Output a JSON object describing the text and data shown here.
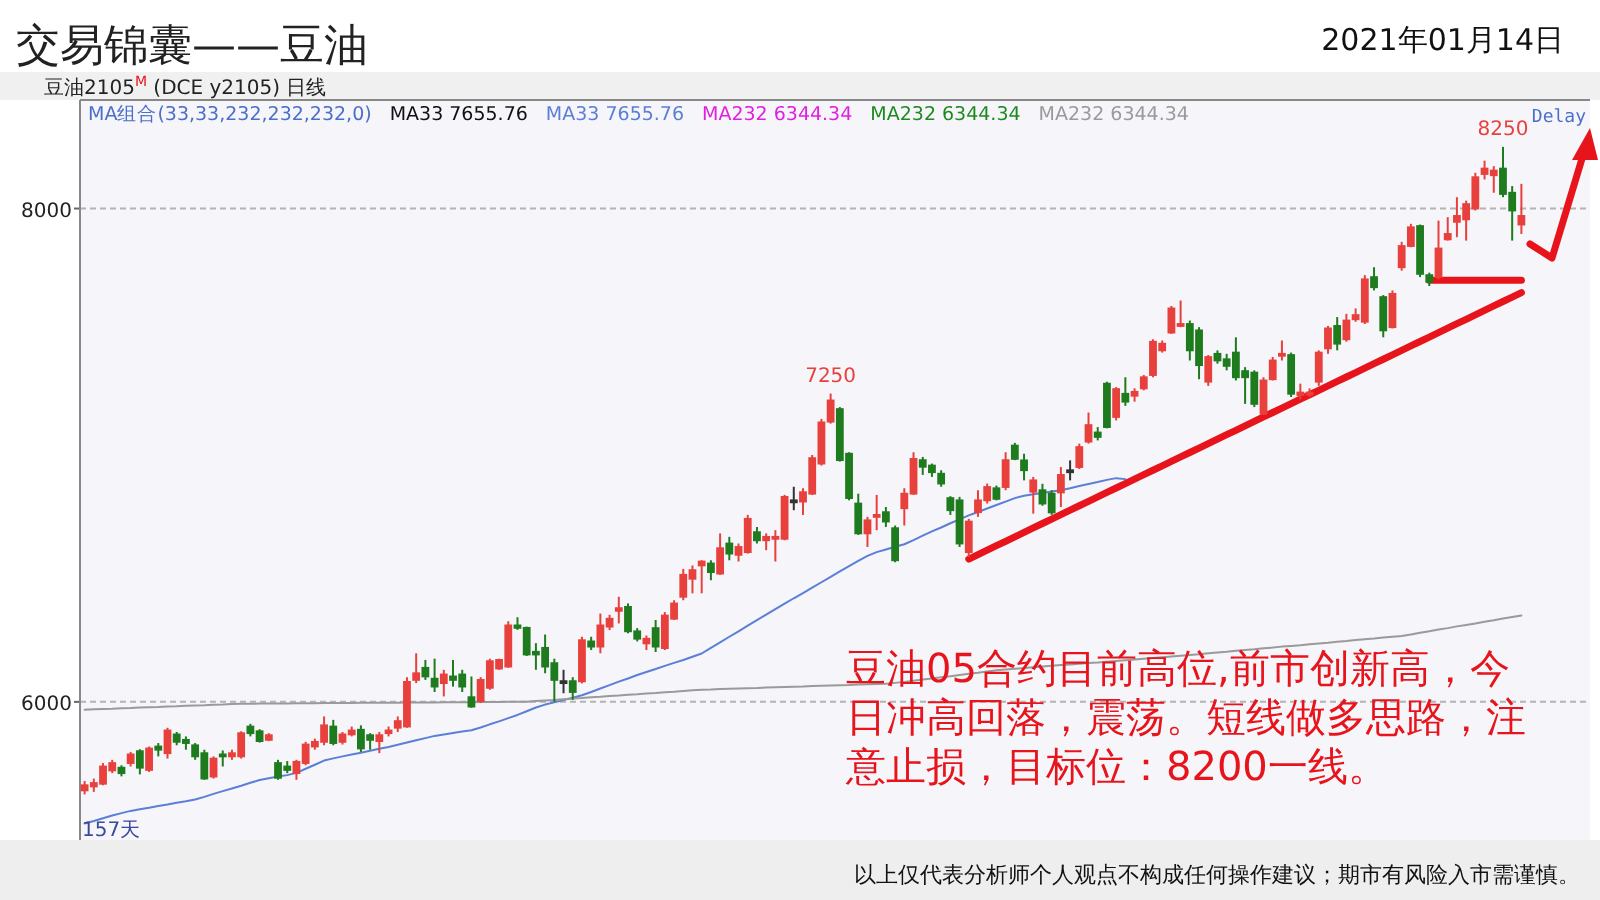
{
  "chart_data": {
    "type": "candlestick",
    "title": "交易锦囊——豆油",
    "colors": [
      "#e8403c",
      "#e8403c",
      "#e8403c",
      "#e8403c",
      "#1e7b1e",
      "#e8403c",
      "#1e7b1e",
      "#e8403c",
      "#1e7b1e",
      "#e8403c",
      "#1e7b1e",
      "#1e7b1e",
      "#1e7b1e",
      "#1e7b1e",
      "#e8403c",
      "#1e7b1e",
      "#e8403c",
      "#e8403c",
      "#1e7b1e",
      "#1e7b1e",
      "#e8403c",
      "#1e7b1e",
      "#1e7b1e",
      "#e8403c",
      "#e8403c",
      "#e8403c",
      "#e8403c",
      "#1e7b1e",
      "#e8403c",
      "#e8403c",
      "#1e7b1e",
      "#1e7b1e",
      "#e8403c",
      "#e8403c",
      "#e8403c",
      "#e8403c",
      "#e8403c",
      "#1e7b1e",
      "#1e7b1e",
      "#e8403c",
      "#1e7b1e",
      "#1e7b1e",
      "#1e7b1e",
      "#e8403c",
      "#e8403c",
      "#e8403c",
      "#e8403c",
      "#1e7b1e",
      "#1e7b1e",
      "#1e7b1e",
      "#1e7b1e",
      "#1e7b1e",
      "#333333",
      "#1e7b1e",
      "#e8403c",
      "#1e7b1e",
      "#e8403c",
      "#e8403c",
      "#e8403c",
      "#1e7b1e",
      "#1e7b1e",
      "#e8403c",
      "#1e7b1e",
      "#e8403c",
      "#e8403c",
      "#e8403c",
      "#e8403c",
      "#e8403c",
      "#1e7b1e",
      "#e8403c",
      "#1e7b1e",
      "#e8403c",
      "#e8403c",
      "#1e7b1e",
      "#e8403c",
      "#e8403c",
      "#e8403c",
      "#333333",
      "#e8403c",
      "#e8403c",
      "#e8403c",
      "#e8403c",
      "#1e7b1e",
      "#1e7b1e",
      "#1e7b1e",
      "#e8403c",
      "#e8403c",
      "#1e7b1e",
      "#1e7b1e",
      "#e8403c",
      "#e8403c",
      "#1e7b1e",
      "#1e7b1e",
      "#1e7b1e",
      "#1e7b1e",
      "#1e7b1e",
      "#e8403c",
      "#e8403c",
      "#e8403c",
      "#1e7b1e",
      "#e8403c",
      "#1e7b1e",
      "#1e7b1e",
      "#e8403c",
      "#1e7b1e",
      "#1e7b1e",
      "#e8403c",
      "#333333",
      "#e8403c",
      "#e8403c",
      "#1e7b1e",
      "#1e7b1e",
      "#e8403c",
      "#1e7b1e",
      "#e8403c",
      "#e8403c",
      "#e8403c",
      "#e8403c",
      "#e8403c",
      "#e8403c",
      "#1e7b1e",
      "#1e7b1e",
      "#e8403c",
      "#1e7b1e",
      "#1e7b1e",
      "#1e7b1e",
      "#1e7b1e",
      "#1e7b1e",
      "#e8403c",
      "#e8403c",
      "#e8403c",
      "#1e7b1e",
      "#e8403c",
      "#e8403c",
      "#e8403c",
      "#e8403c",
      "#1e7b1e",
      "#e8403c",
      "#e8403c",
      "#e8403c",
      "#1e7b1e",
      "#1e7b1e",
      "#e8403c",
      "#e8403c",
      "#e8403c",
      "#1e7b1e",
      "#1e7b1e",
      "#e8403c",
      "#e8403c",
      "#e8403c",
      "#e8403c",
      "#e8403c",
      "#e8403c",
      "#e8403c",
      "#1e7b1e",
      "#1e7b1e",
      "#e8403c"
    ],
    "categories": [
      null,
      null,
      null,
      null,
      null,
      null,
      null,
      null,
      null,
      null,
      null,
      null,
      null,
      null,
      null,
      null,
      null,
      null,
      null,
      null,
      null,
      null,
      null,
      null,
      null,
      null,
      null,
      null,
      null,
      null,
      null,
      null,
      null,
      null,
      null,
      null,
      null,
      null,
      null,
      null,
      null,
      null,
      null,
      null,
      null,
      null,
      null,
      null,
      null,
      null,
      null,
      null,
      null,
      null,
      null,
      null,
      null,
      null,
      null,
      null,
      null,
      null,
      null,
      null,
      null,
      null,
      null,
      null,
      null,
      null,
      null,
      null,
      null,
      null,
      null,
      null,
      null,
      null,
      null,
      null,
      null,
      null,
      null,
      null,
      null,
      null,
      null,
      null,
      null,
      null,
      null,
      null,
      null,
      null,
      null,
      null,
      null,
      null,
      null,
      null,
      null,
      null,
      null,
      null,
      null,
      null,
      null,
      null,
      null,
      null,
      null,
      null,
      null,
      null,
      null,
      null,
      null,
      null,
      null,
      null,
      null,
      null,
      null,
      null,
      null,
      null,
      null,
      null,
      null,
      null,
      null,
      null,
      null,
      null,
      null,
      null,
      null,
      null,
      null,
      null,
      null,
      null,
      null,
      null,
      null,
      null,
      null,
      null,
      null,
      null,
      null,
      null,
      null,
      null,
      null,
      null,
      null
    ],
    "value_labels": [
      null,
      null,
      null,
      null,
      null,
      null,
      null,
      null,
      null,
      null,
      null,
      null,
      null,
      null,
      null,
      null,
      null,
      null,
      null,
      null,
      null,
      null,
      null,
      null,
      null,
      null,
      null,
      null,
      null,
      null,
      null,
      null,
      null,
      null,
      null,
      null,
      null,
      null,
      null,
      null,
      null,
      null,
      null,
      null,
      null,
      null,
      null,
      null,
      null,
      null,
      null,
      null,
      null,
      null,
      null,
      null,
      null,
      null,
      null,
      null,
      null,
      null,
      null,
      null,
      null,
      null,
      null,
      null,
      null,
      null,
      null,
      null,
      null,
      null,
      null,
      null,
      null,
      null,
      null,
      null,
      null,
      "7250",
      null,
      null,
      null,
      null,
      null,
      null,
      null,
      null,
      null,
      null,
      null,
      null,
      null,
      null,
      null,
      null,
      null,
      null,
      null,
      null,
      null,
      null,
      null,
      null,
      null,
      null,
      null,
      null,
      null,
      null,
      null,
      null,
      null,
      null,
      null,
      null,
      null,
      null,
      null,
      null,
      null,
      null,
      null,
      null,
      null,
      null,
      null,
      null,
      null,
      null,
      null,
      null,
      null,
      null,
      null,
      null,
      null,
      null,
      null,
      null,
      null,
      null,
      null,
      null,
      null,
      null,
      null,
      null,
      null,
      null,
      null,
      null,
      "8250",
      null,
      null
    ],
    "ohlc": [
      [
        5641,
        5679,
        5625,
        5662
      ],
      [
        5657,
        5689,
        5635,
        5671
      ],
      [
        5668,
        5752,
        5662,
        5738
      ],
      [
        5722,
        5765,
        5711,
        5752
      ],
      [
        5733,
        5743,
        5698,
        5711
      ],
      [
        5752,
        5797,
        5738,
        5787
      ],
      [
        5800,
        5808,
        5706,
        5733
      ],
      [
        5724,
        5819,
        5716,
        5811
      ],
      [
        5819,
        5833,
        5779,
        5806
      ],
      [
        5792,
        5895,
        5770,
        5884
      ],
      [
        5868,
        5878,
        5824,
        5838
      ],
      [
        5846,
        5860,
        5806,
        5833
      ],
      [
        5824,
        5833,
        5765,
        5779
      ],
      [
        5792,
        5806,
        5684,
        5689
      ],
      [
        5697,
        5779,
        5689,
        5770
      ],
      [
        5787,
        5803,
        5738,
        5779
      ],
      [
        5779,
        5806,
        5765,
        5792
      ],
      [
        5779,
        5881,
        5770,
        5873
      ],
      [
        5900,
        5911,
        5860,
        5873
      ],
      [
        5881,
        5889,
        5835,
        5841
      ],
      [
        5846,
        5873,
        5841,
        5865
      ],
      [
        5752,
        5765,
        5684,
        5692
      ],
      [
        5738,
        5760,
        5711,
        5724
      ],
      [
        5711,
        5765,
        5684,
        5757
      ],
      [
        5752,
        5838,
        5743,
        5827
      ],
      [
        5819,
        5851,
        5806,
        5838
      ],
      [
        5838,
        5941,
        5824,
        5905
      ],
      [
        5900,
        5927,
        5824,
        5833
      ],
      [
        5838,
        5878,
        5827,
        5868
      ],
      [
        5868,
        5900,
        5860,
        5884
      ],
      [
        5887,
        5905,
        5797,
        5811
      ],
      [
        5865,
        5873,
        5806,
        5846
      ],
      [
        5841,
        5878,
        5792,
        5865
      ],
      [
        5873,
        5900,
        5860,
        5884
      ],
      [
        5895,
        5941,
        5878,
        5922
      ],
      [
        5900,
        6100,
        5895,
        6081
      ],
      [
        6089,
        6197,
        6076,
        6116
      ],
      [
        6138,
        6170,
        6089,
        6103
      ],
      [
        6094,
        6175,
        6040,
        6062
      ],
      [
        6076,
        6130,
        6022,
        6111
      ],
      [
        6103,
        6170,
        6062,
        6089
      ],
      [
        6111,
        6130,
        6040,
        6062
      ],
      [
        6019,
        6103,
        5976,
        5981
      ],
      [
        6003,
        6100,
        5995,
        6089
      ],
      [
        6057,
        6175,
        6049,
        6165
      ],
      [
        6135,
        6175,
        6130,
        6170
      ],
      [
        6143,
        6327,
        6138,
        6310
      ],
      [
        6310,
        6343,
        6292,
        6300
      ],
      [
        6300,
        6305,
        6186,
        6192
      ],
      [
        6203,
        6238,
        6130,
        6192
      ],
      [
        6219,
        6273,
        6116,
        6143
      ],
      [
        6157,
        6175,
        6000,
        6089
      ],
      [
        6084,
        6130,
        6035,
        6084
      ],
      [
        6084,
        6100,
        6008,
        6040
      ],
      [
        6083,
        6264,
        6075,
        6250
      ],
      [
        6245,
        6264,
        6210,
        6224
      ],
      [
        6224,
        6358,
        6197,
        6310
      ],
      [
        6305,
        6353,
        6291,
        6337
      ],
      [
        6369,
        6426,
        6318,
        6380
      ],
      [
        6385,
        6399,
        6278,
        6286
      ],
      [
        6286,
        6299,
        6245,
        6256
      ],
      [
        6237,
        6269,
        6210,
        6256
      ],
      [
        6299,
        6332,
        6202,
        6224
      ],
      [
        6218,
        6364,
        6210,
        6350
      ],
      [
        6337,
        6412,
        6332,
        6399
      ],
      [
        6426,
        6539,
        6412,
        6515
      ],
      [
        6499,
        6553,
        6440,
        6534
      ],
      [
        6553,
        6574,
        6440,
        6569
      ],
      [
        6561,
        6574,
        6493,
        6526
      ],
      [
        6520,
        6683,
        6515,
        6623
      ],
      [
        6642,
        6669,
        6574,
        6601
      ],
      [
        6596,
        6642,
        6569,
        6628
      ],
      [
        6607,
        6758,
        6601,
        6742
      ],
      [
        6688,
        6709,
        6642,
        6655
      ],
      [
        6655,
        6683,
        6615,
        6669
      ],
      [
        6661,
        6696,
        6569,
        6669
      ],
      [
        6661,
        6839,
        6655,
        6831
      ],
      [
        6817,
        6872,
        6777,
        6817
      ],
      [
        6812,
        6866,
        6758,
        6850
      ],
      [
        6844,
        7001,
        6839,
        6988
      ],
      [
        6966,
        7147,
        6958,
        7133
      ],
      [
        7136,
        7250,
        7128,
        7222
      ],
      [
        7187,
        7195,
        6974,
        6980
      ],
      [
        7006,
        7012,
        6817,
        6826
      ],
      [
        6804,
        6844,
        6677,
        6683
      ],
      [
        6683,
        6750,
        6628,
        6736
      ],
      [
        6750,
        6839,
        6696,
        6758
      ],
      [
        6769,
        6790,
        6709,
        6731
      ],
      [
        6704,
        6715,
        6566,
        6574
      ],
      [
        6785,
        6866,
        6715,
        6844
      ],
      [
        6844,
        7012,
        6839,
        6985
      ],
      [
        6980,
        6993,
        6920,
        6953
      ],
      [
        6958,
        6966,
        6912,
        6931
      ],
      [
        6925,
        6939,
        6872,
        6885
      ],
      [
        6826,
        6834,
        6758,
        6777
      ],
      [
        6817,
        6831,
        6628,
        6642
      ],
      [
        6607,
        6742,
        6588,
        6731
      ],
      [
        6769,
        6858,
        6750,
        6817
      ],
      [
        6817,
        6885,
        6804,
        6871
      ],
      [
        6866,
        6877,
        6817,
        6823
      ],
      [
        6871,
        7012,
        6858,
        6980
      ],
      [
        7039,
        7050,
        6980,
        6985
      ],
      [
        6979,
        7006,
        6898,
        6939
      ],
      [
        6852,
        6912,
        6763,
        6898
      ],
      [
        6858,
        6884,
        6795,
        6804
      ],
      [
        6844,
        6858,
        6758,
        6768
      ],
      [
        6849,
        6952,
        6790,
        6920
      ],
      [
        6939,
        6979,
        6898,
        6939
      ],
      [
        6952,
        7047,
        6944,
        7033
      ],
      [
        7055,
        7173,
        7047,
        7122
      ],
      [
        7092,
        7114,
        7060,
        7074
      ],
      [
        7290,
        7298,
        7109,
        7114
      ],
      [
        7155,
        7276,
        7141,
        7268
      ],
      [
        7249,
        7316,
        7200,
        7217
      ],
      [
        7241,
        7271,
        7217,
        7257
      ],
      [
        7271,
        7325,
        7263,
        7316
      ],
      [
        7325,
        7470,
        7316,
        7460
      ],
      [
        7425,
        7465,
        7416,
        7452
      ],
      [
        7497,
        7605,
        7492,
        7595
      ],
      [
        7524,
        7627,
        7519,
        7532
      ],
      [
        7532,
        7546,
        7384,
        7425
      ],
      [
        7506,
        7519,
        7308,
        7365
      ],
      [
        7298,
        7406,
        7281,
        7398
      ],
      [
        7411,
        7425,
        7371,
        7384
      ],
      [
        7389,
        7411,
        7344,
        7362
      ],
      [
        7416,
        7478,
        7303,
        7316
      ],
      [
        7341,
        7357,
        7208,
        7316
      ],
      [
        7335,
        7344,
        7195,
        7208
      ],
      [
        7168,
        7316,
        7163,
        7303
      ],
      [
        7308,
        7398,
        7303,
        7384
      ],
      [
        7406,
        7465,
        7384,
        7411
      ],
      [
        7406,
        7416,
        7236,
        7249
      ],
      [
        7244,
        7290,
        7227,
        7254
      ],
      [
        7249,
        7271,
        7236,
        7254
      ],
      [
        7298,
        7425,
        7281,
        7416
      ],
      [
        7433,
        7524,
        7411,
        7514
      ],
      [
        7524,
        7560,
        7425,
        7452
      ],
      [
        7470,
        7573,
        7460,
        7546
      ],
      [
        7551,
        7595,
        7541,
        7568
      ],
      [
        7541,
        7730,
        7532,
        7713
      ],
      [
        7722,
        7762,
        7668,
        7681
      ],
      [
        7641,
        7649,
        7478,
        7506
      ],
      [
        7519,
        7668,
        7514,
        7654
      ],
      [
        7762,
        7865,
        7748,
        7848
      ],
      [
        7848,
        7938,
        7843,
        7924
      ],
      [
        7929,
        7935,
        7722,
        7735
      ],
      [
        7730,
        7740,
        7686,
        7703
      ],
      [
        7722,
        7951,
        7713,
        7838
      ],
      [
        7875,
        7965,
        7870,
        7897
      ],
      [
        7946,
        8046,
        7884,
        7970
      ],
      [
        7956,
        8032,
        7870,
        8018
      ],
      [
        8000,
        8145,
        7992,
        8127
      ],
      [
        8140,
        8194,
        8118,
        8162
      ],
      [
        8135,
        8172,
        8064,
        8154
      ],
      [
        8162,
        8250,
        8046,
        8059
      ],
      [
        8064,
        8091,
        7870,
        7992
      ],
      [
        7935,
        8100,
        7897,
        7970
      ]
    ],
    "series": [
      {
        "type": "line",
        "name": "MA33 7655.76",
        "color": "#5b7fd6",
        "values": [
          5507,
          5517,
          5528,
          5539,
          5549,
          5558,
          5565,
          5571,
          5578,
          5584,
          5591,
          5597,
          5604,
          5615,
          5627,
          5638,
          5649,
          5660,
          5672,
          5683,
          5690,
          5697,
          5703,
          5712,
          5729,
          5745,
          5762,
          5771,
          5779,
          5787,
          5794,
          5802,
          5810,
          5817,
          5826,
          5835,
          5844,
          5853,
          5862,
          5868,
          5874,
          5880,
          5885,
          5896,
          5909,
          5921,
          5934,
          5947,
          5962,
          5977,
          5989,
          5998,
          6007,
          6017,
          6027,
          6040,
          6054,
          6068,
          6082,
          6095,
          6109,
          6121,
          6133,
          6146,
          6158,
          6170,
          6183,
          6196,
          6219,
          6241,
          6264,
          6286,
          6309,
          6331,
          6354,
          6376,
          6398,
          6420,
          6441,
          6463,
          6485,
          6507,
          6529,
          6550,
          6572,
          6592,
          6607,
          6618,
          6629,
          6639,
          6656,
          6674,
          6691,
          6707,
          6724,
          6740,
          6756,
          6770,
          6784,
          6798,
          6812,
          6826,
          6836,
          6842,
          6847,
          6853,
          6858,
          6866,
          6875,
          6883,
          6891,
          6900,
          6907,
          6903,
          null,
          null,
          null,
          null,
          null,
          null,
          null,
          null,
          null,
          null,
          null,
          null,
          null,
          null,
          null,
          null,
          null,
          null,
          null,
          null,
          null,
          null,
          null,
          null,
          null,
          null,
          null,
          null,
          null,
          null,
          null,
          null,
          null,
          null,
          null,
          null,
          null,
          null,
          null,
          null,
          null,
          null,
          null
        ]
      },
      {
        "type": "line",
        "name": "MA232 6344.34",
        "color": "#9a9a9a",
        "values": [
          5968,
          5970,
          5971,
          5972,
          5974,
          5975,
          5977,
          5978,
          5979,
          5981,
          5982,
          5984,
          5985,
          5986,
          5988,
          5989,
          5991,
          5992,
          5992,
          5993,
          5993,
          5993,
          5993,
          5994,
          5994,
          5994,
          5995,
          5995,
          5995,
          5995,
          5996,
          5996,
          5996,
          5996,
          5996,
          5997,
          5997,
          5997,
          5997,
          5998,
          5998,
          5998,
          5998,
          5999,
          5999,
          5999,
          6000,
          6000,
          6000,
          6003,
          6006,
          6008,
          6011,
          6014,
          6016,
          6019,
          6021,
          6024,
          6026,
          6029,
          6031,
          6034,
          6036,
          6039,
          6041,
          6044,
          6047,
          6049,
          6050,
          6052,
          6053,
          6054,
          6055,
          6056,
          6058,
          6059,
          6060,
          6061,
          6062,
          6064,
          6065,
          6066,
          6067,
          6068,
          6070,
          6071,
          6072,
          6073,
          6077,
          6081,
          6086,
          6091,
          6095,
          6100,
          6104,
          6109,
          6114,
          6118,
          6123,
          6128,
          6131,
          6134,
          6137,
          6140,
          6143,
          6146,
          6149,
          6152,
          6155,
          6158,
          6160,
          6163,
          6166,
          6169,
          6172,
          6175,
          6178,
          6181,
          6184,
          6187,
          6190,
          6193,
          6197,
          6200,
          6203,
          6207,
          6210,
          6213,
          6217,
          6220,
          6224,
          6227,
          6230,
          6234,
          6237,
          6240,
          6244,
          6247,
          6251,
          6254,
          6257,
          6261,
          6264,
          6267,
          6273,
          6280,
          6286,
          6293,
          6299,
          6306,
          6312,
          6318,
          6325,
          6331,
          6338,
          6344,
          6350
        ]
      },
      {
        "type": "line",
        "color": "#e8141c",
        "values": [
          null,
          null,
          null,
          null,
          null,
          null,
          null,
          null,
          null,
          null,
          null,
          null,
          null,
          null,
          null,
          null,
          null,
          null,
          null,
          null,
          null,
          null,
          null,
          null,
          null,
          null,
          null,
          null,
          null,
          null,
          null,
          null,
          null,
          null,
          null,
          null,
          null,
          null,
          null,
          null,
          null,
          null,
          null,
          null,
          null,
          null,
          null,
          null,
          null,
          null,
          null,
          null,
          null,
          null,
          null,
          null,
          null,
          null,
          null,
          null,
          null,
          null,
          null,
          null,
          null,
          null,
          null,
          null,
          null,
          null,
          null,
          null,
          null,
          null,
          null,
          null,
          null,
          null,
          null,
          null,
          null,
          null,
          null,
          null,
          null,
          null,
          null,
          null,
          null,
          null,
          null,
          null,
          null,
          null,
          null,
          null,
          6579,
          6597,
          6615,
          6633,
          6651,
          6669,
          6687,
          6705,
          6723,
          6741,
          6759,
          6777,
          6795,
          6813,
          6831,
          6849,
          6867,
          6885,
          6903,
          6921,
          6939,
          6957,
          6975,
          6993,
          7011,
          7029,
          7047,
          7065,
          7083,
          7101,
          7119,
          7137,
          7155,
          7173,
          7191,
          7209,
          7227,
          7245,
          7263,
          7281,
          7299,
          7317,
          7335,
          7353,
          7371,
          7389,
          7407,
          7425,
          7443,
          7461,
          7479,
          7497,
          7515,
          7533,
          7551,
          7569,
          7587,
          7605,
          7623,
          7641,
          7659
        ]
      },
      {
        "type": "line",
        "color": "#e8141c",
        "values": [
          null,
          null,
          null,
          null,
          null,
          null,
          null,
          null,
          null,
          null,
          null,
          null,
          null,
          null,
          null,
          null,
          null,
          null,
          null,
          null,
          null,
          null,
          null,
          null,
          null,
          null,
          null,
          null,
          null,
          null,
          null,
          null,
          null,
          null,
          null,
          null,
          null,
          null,
          null,
          null,
          null,
          null,
          null,
          null,
          null,
          null,
          null,
          null,
          null,
          null,
          null,
          null,
          null,
          null,
          null,
          null,
          null,
          null,
          null,
          null,
          null,
          null,
          null,
          null,
          null,
          null,
          null,
          null,
          null,
          null,
          null,
          null,
          null,
          null,
          null,
          null,
          null,
          null,
          null,
          null,
          null,
          null,
          null,
          null,
          null,
          null,
          null,
          null,
          null,
          null,
          null,
          null,
          null,
          null,
          null,
          null,
          null,
          null,
          null,
          null,
          null,
          null,
          null,
          null,
          null,
          null,
          null,
          null,
          null,
          null,
          null,
          null,
          null,
          null,
          null,
          null,
          null,
          null,
          null,
          null,
          null,
          null,
          null,
          null,
          null,
          null,
          null,
          null,
          null,
          null,
          null,
          null,
          null,
          null,
          null,
          null,
          null,
          null,
          null,
          null,
          null,
          null,
          null,
          null,
          null,
          null,
          7709,
          7709,
          7709,
          7709,
          7709,
          7709,
          7709,
          7709,
          7709,
          7709,
          7709
        ]
      }
    ],
    "ylim": [
      5440,
      8440
    ],
    "yticks": [
      6000,
      8000
    ],
    "grid": "y",
    "tick_labels": "y",
    "annotations": [
      "豆油2105$^{M}$ (DCE y2105)  日线",
      "MA组合(33,33,232,232,232,0)",
      "MA33 7655.76",
      "MA232 6344.34",
      "MA232 6344.34",
      "Delay",
      "157天",
      "豆油05合约目前高位,前市创新高，今日冲高回落，震荡。短线做多思路，注意止损，目标位：8200一线。",
      "以上仅代表分析师个人观点不构成任何操作建议；期市有风险入市需谨慎。",
      "2021年01月14日"
    ]
  }
}
